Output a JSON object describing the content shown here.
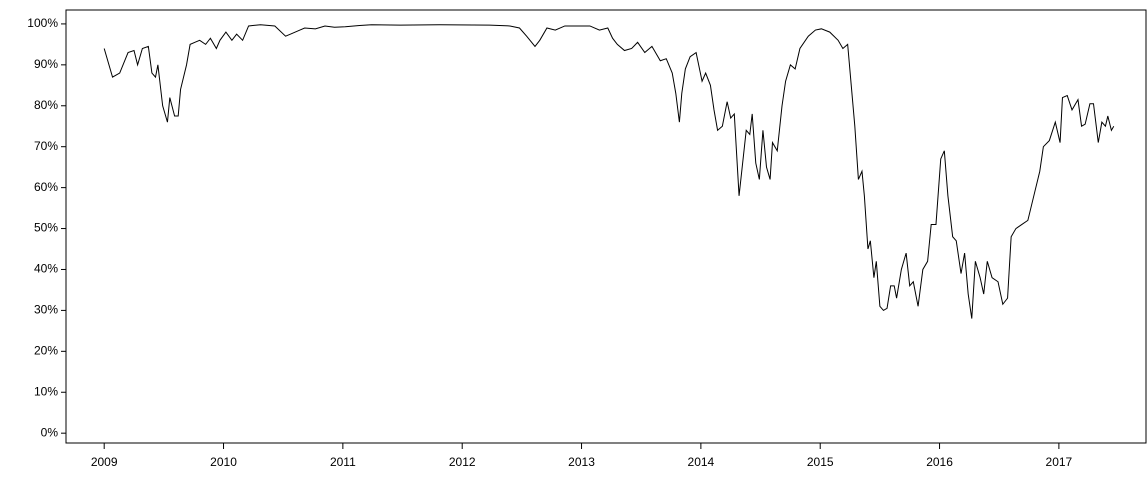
{
  "chart_data": {
    "type": "line",
    "color": "#000000",
    "x": [
      2009.0,
      2009.07,
      2009.13,
      2009.2,
      2009.25,
      2009.28,
      2009.32,
      2009.37,
      2009.4,
      2009.43,
      2009.45,
      2009.49,
      2009.53,
      2009.55,
      2009.59,
      2009.62,
      2009.64,
      2009.69,
      2009.72,
      2009.76,
      2009.8,
      2009.85,
      2009.89,
      2009.94,
      2009.97,
      2010.02,
      2010.07,
      2010.11,
      2010.16,
      2010.21,
      2010.31,
      2010.43,
      2010.52,
      2010.56,
      2010.64,
      2010.68,
      2010.77,
      2010.85,
      2010.93,
      2011.02,
      2011.14,
      2011.24,
      2011.48,
      2011.81,
      2012.23,
      2012.4,
      2012.48,
      2012.54,
      2012.61,
      2012.65,
      2012.71,
      2012.78,
      2012.86,
      2013.07,
      2013.15,
      2013.22,
      2013.26,
      2013.3,
      2013.36,
      2013.42,
      2013.47,
      2013.53,
      2013.59,
      2013.66,
      2013.71,
      2013.76,
      2013.79,
      2013.82,
      2013.84,
      2013.87,
      2013.91,
      2013.96,
      2014.01,
      2014.04,
      2014.08,
      2014.11,
      2014.14,
      2014.18,
      2014.22,
      2014.25,
      2014.28,
      2014.32,
      2014.35,
      2014.38,
      2014.41,
      2014.43,
      2014.46,
      2014.49,
      2014.52,
      2014.55,
      2014.58,
      2014.6,
      2014.64,
      2014.68,
      2014.71,
      2014.75,
      2014.79,
      2014.83,
      2014.9,
      2014.96,
      2015.01,
      2015.08,
      2015.15,
      2015.19,
      2015.23,
      2015.26,
      2015.29,
      2015.32,
      2015.35,
      2015.37,
      2015.4,
      2015.42,
      2015.45,
      2015.47,
      2015.5,
      2015.53,
      2015.56,
      2015.59,
      2015.62,
      2015.64,
      2015.68,
      2015.72,
      2015.75,
      2015.78,
      2015.82,
      2015.86,
      2015.9,
      2015.93,
      2015.97,
      2016.01,
      2016.04,
      2016.07,
      2016.11,
      2016.14,
      2016.18,
      2016.21,
      2016.24,
      2016.27,
      2016.3,
      2016.34,
      2016.37,
      2016.4,
      2016.44,
      2016.49,
      2016.53,
      2016.57,
      2016.6,
      2016.64,
      2016.69,
      2016.74,
      2016.79,
      2016.84,
      2016.87,
      2016.92,
      2016.97,
      2017.01,
      2017.03,
      2017.07,
      2017.11,
      2017.16,
      2017.19,
      2017.22,
      2017.26,
      2017.29,
      2017.33,
      2017.36,
      2017.39,
      2017.41,
      2017.44,
      2017.46
    ],
    "values": [
      94,
      87,
      88,
      93,
      93.5,
      90,
      94,
      94.5,
      88,
      87,
      90,
      80,
      76,
      82,
      77.5,
      77.5,
      84,
      90,
      95,
      95.5,
      96,
      95,
      96.5,
      94,
      96,
      98,
      96,
      97.5,
      96,
      99.5,
      99.8,
      99.5,
      97,
      97.5,
      98.5,
      99,
      98.8,
      99.5,
      99.2,
      99.3,
      99.6,
      99.8,
      99.7,
      99.8,
      99.7,
      99.5,
      99,
      97,
      94.5,
      96,
      99,
      98.5,
      99.5,
      99.5,
      98.5,
      99,
      96.5,
      95,
      93.5,
      94,
      95.5,
      93,
      94.5,
      91,
      91.5,
      88,
      83,
      76,
      83,
      89,
      92,
      93,
      86,
      88,
      85,
      79,
      74,
      75,
      81,
      77,
      78,
      58,
      66,
      74,
      73,
      78,
      66,
      62,
      74,
      65,
      62,
      71,
      69,
      80,
      86,
      90,
      89,
      94,
      97,
      98.5,
      98.8,
      98,
      96,
      94,
      95,
      85,
      75,
      62,
      64,
      58,
      45,
      47,
      38,
      42,
      31,
      30,
      30.5,
      36,
      36,
      33,
      40,
      44,
      36,
      37,
      31,
      40,
      42,
      51,
      51,
      67,
      69,
      58,
      48,
      47,
      39,
      44,
      34,
      28,
      42,
      38,
      34,
      42,
      38,
      37,
      31.5,
      33,
      48,
      50,
      51,
      52,
      58,
      64,
      70,
      71.5,
      76,
      71,
      82,
      82.5,
      79,
      81.5,
      75,
      75.5,
      80.5,
      80.5,
      71,
      76,
      75,
      77.5,
      74,
      75
    ],
    "xlim": [
      2008.68,
      2017.73
    ],
    "xticks": [
      2009,
      2010,
      2011,
      2012,
      2013,
      2014,
      2015,
      2016,
      2017
    ],
    "ylim": [
      -2.4,
      103.4
    ],
    "yticks": [
      {
        "value": 0,
        "label": "0%"
      },
      {
        "value": 10,
        "label": "10%"
      },
      {
        "value": 20,
        "label": "20%"
      },
      {
        "value": 30,
        "label": "30%"
      },
      {
        "value": 40,
        "label": "40%"
      },
      {
        "value": 50,
        "label": "50%"
      },
      {
        "value": 60,
        "label": "60%"
      },
      {
        "value": 70,
        "label": "70%"
      },
      {
        "value": 80,
        "label": "80%"
      },
      {
        "value": 90,
        "label": "90%"
      },
      {
        "value": 100,
        "label": "100%"
      }
    ]
  }
}
